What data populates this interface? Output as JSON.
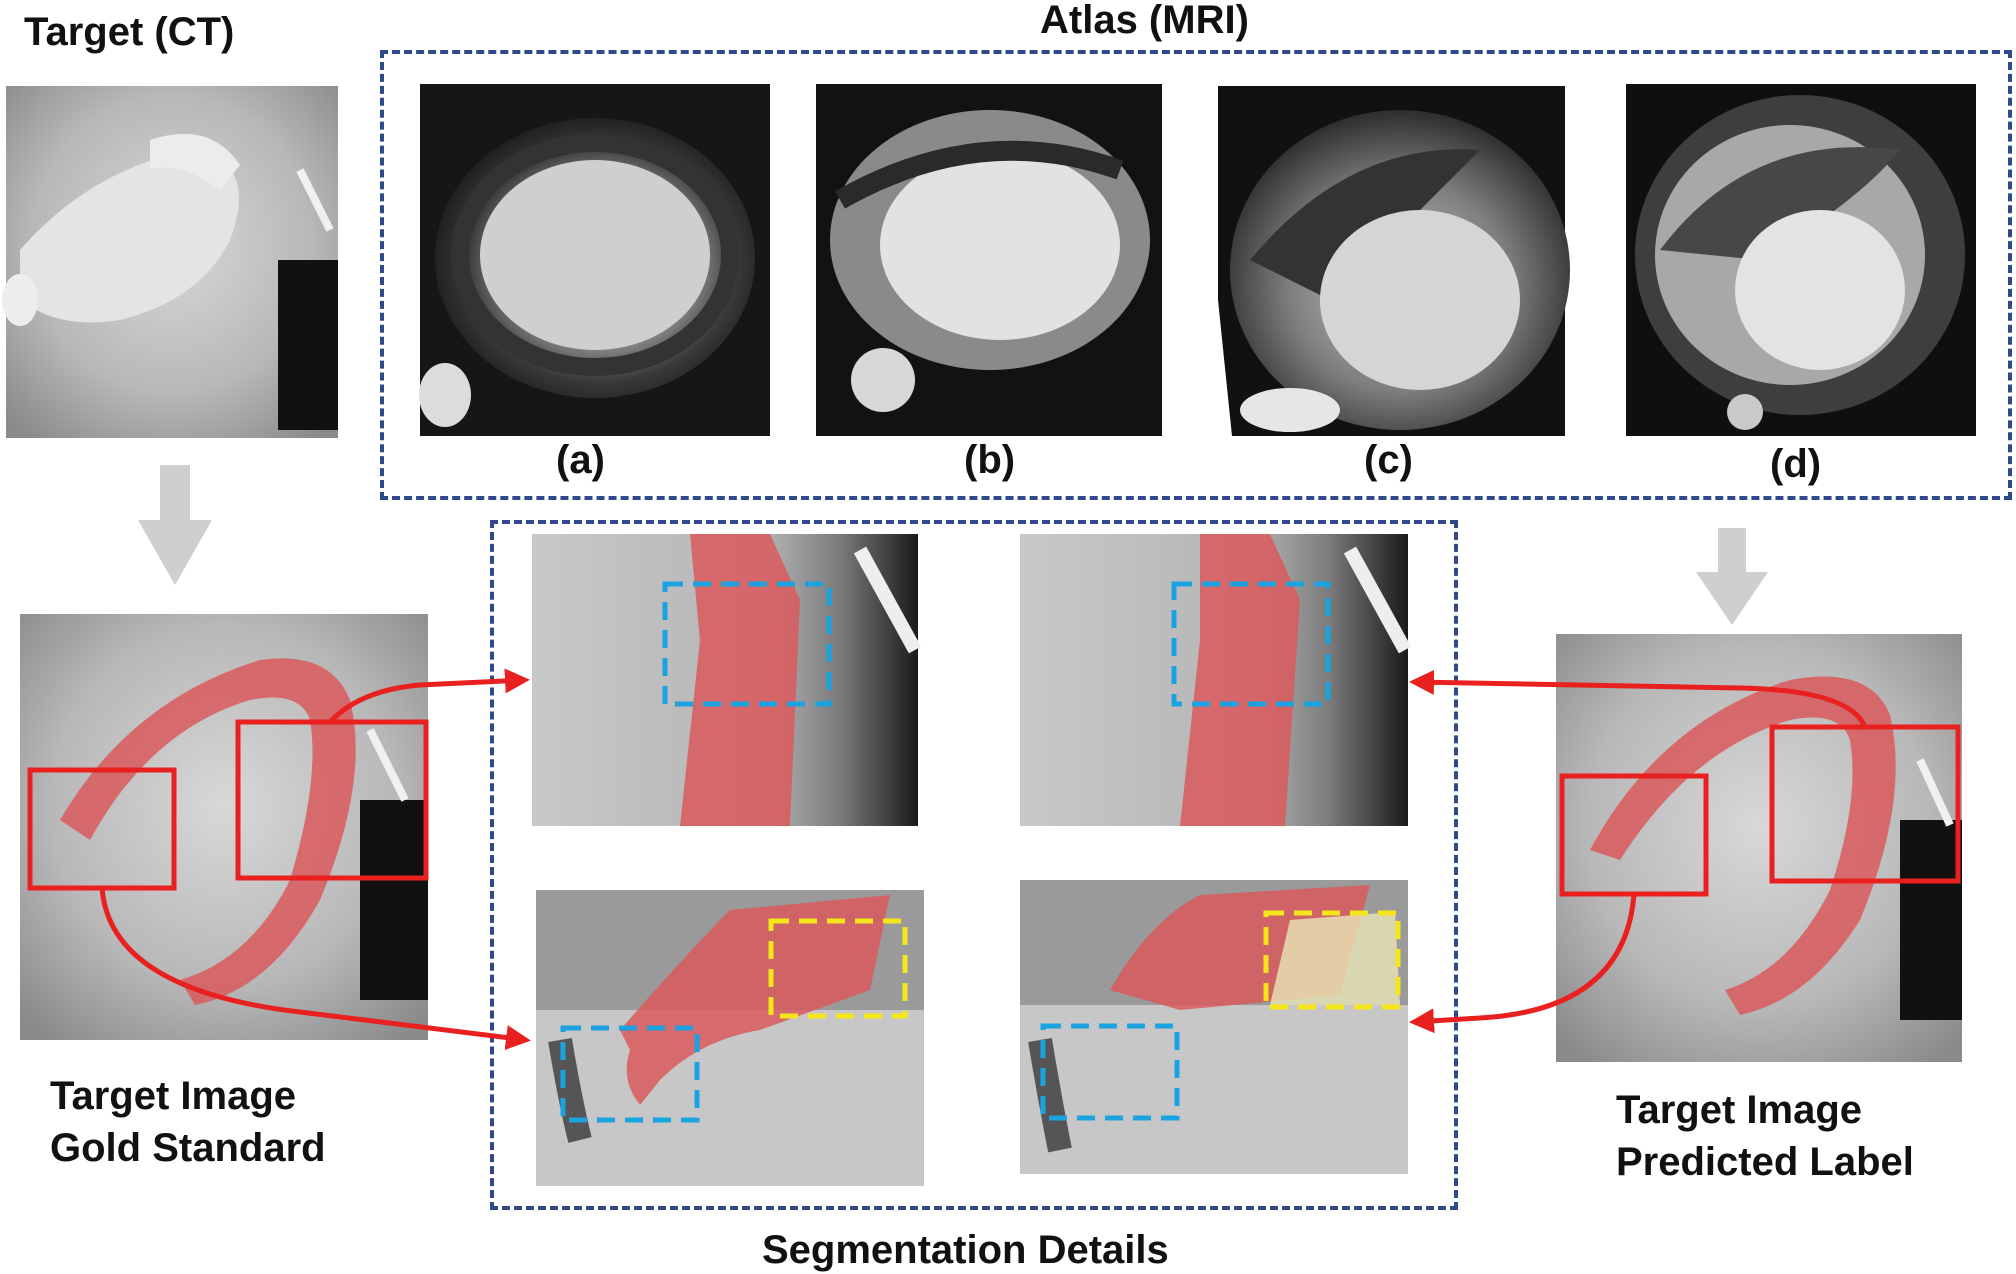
{
  "labels": {
    "target_title": "Target (CT)",
    "atlas_title": "Atlas (MRI)",
    "atlas_a": "(a)",
    "atlas_b": "(b)",
    "atlas_c": "(c)",
    "atlas_d": "(d)",
    "gold_line1": "Target Image",
    "gold_line2": "Gold Standard",
    "pred_line1": "Target Image",
    "pred_line2": "Predicted Label",
    "segmentation_title": "Segmentation Details"
  },
  "colors": {
    "frame_blue": "#2f4a8a",
    "highlight_red": "#e8201f",
    "overlay_red": "#d9595c",
    "detail_cyan": "#1aa3e0",
    "detail_yellow": "#f5e61a",
    "arrow_gray": "#cfcfcf"
  }
}
